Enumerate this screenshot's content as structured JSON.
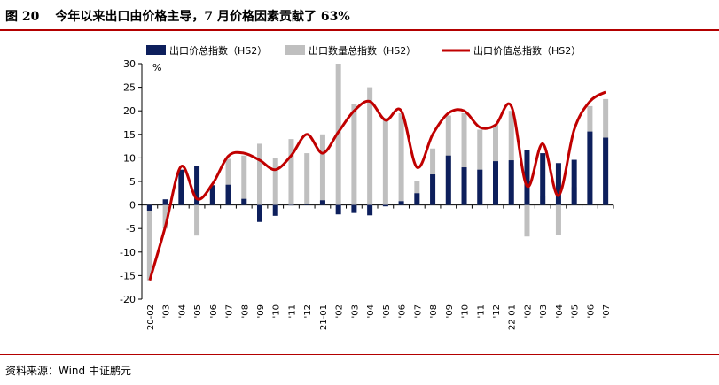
{
  "figure": {
    "number": "图 20",
    "title": "今年以来出口由价格主导，7 月价格因素贡献了 63%",
    "source": "资料来源：Wind   中证鹏元"
  },
  "chart_data": {
    "type": "bar",
    "unit_label": "%",
    "ylim": [
      -20,
      30
    ],
    "yticks": [
      -20,
      -15,
      -10,
      -5,
      0,
      5,
      10,
      15,
      20,
      25,
      30
    ],
    "legend_position": "top",
    "colors": {
      "price": "#0d1f5c",
      "volume": "#bfbfbf",
      "value": "#c00000"
    },
    "categories": [
      "20-02",
      "20-03",
      "20-04",
      "20-05",
      "20-06",
      "20-07",
      "20-08",
      "20-09",
      "20-10",
      "20-11",
      "20-12",
      "21-01",
      "21-02",
      "21-03",
      "21-04",
      "21-05",
      "21-06",
      "21-07",
      "21-08",
      "21-09",
      "21-10",
      "21-11",
      "21-12",
      "22-01",
      "22-02",
      "22-03",
      "22-04",
      "22-05",
      "22-06",
      "22-07"
    ],
    "tick_labels": [
      "20-02",
      "'03",
      "'04",
      "'05",
      "'06",
      "'07",
      "'08",
      "'09",
      "'10",
      "'11",
      "'12",
      "21-01",
      "'02",
      "'03",
      "'04",
      "'05",
      "'06",
      "'07",
      "'08",
      "'09",
      "'10",
      "'11",
      "'12",
      "22-01",
      "'02",
      "'03",
      "'04",
      "'05",
      "'06",
      "'07"
    ],
    "series": [
      {
        "name": "出口价总指数（HS2）",
        "kind": "bar",
        "color": "#0d1f5c",
        "values": [
          -1.2,
          1.2,
          7.5,
          8.3,
          4.2,
          4.3,
          1.3,
          -3.6,
          -2.3,
          0,
          0.3,
          1.0,
          -2.0,
          -1.7,
          -2.2,
          -0.3,
          0.8,
          2.5,
          6.5,
          10.5,
          8.0,
          7.5,
          9.3,
          9.5,
          11.7,
          11.0,
          8.9,
          9.6,
          15.6,
          14.3
        ]
      },
      {
        "name": "出口数量总指数（HS2）",
        "kind": "bar",
        "color": "#bfbfbf",
        "values": [
          -16.0,
          -5.0,
          0.5,
          -6.5,
          0.5,
          9.8,
          10.5,
          13.0,
          10.0,
          14.0,
          11.0,
          15.0,
          30.0,
          21.5,
          25.0,
          18.5,
          19.5,
          5.0,
          12.0,
          19.0,
          19.5,
          16.0,
          17.0,
          20.0,
          -6.7,
          2.0,
          -6.3,
          3.8,
          21.0,
          22.5
        ]
      },
      {
        "name": "出口价值总指数（HS2）",
        "kind": "line",
        "color": "#c00000",
        "values": [
          -16.0,
          -4.5,
          8.2,
          1.3,
          4.5,
          10.4,
          11.0,
          9.5,
          7.5,
          10.5,
          15.0,
          11.0,
          15.5,
          20.0,
          22.0,
          18.0,
          20.0,
          8.0,
          15.0,
          19.5,
          20.0,
          16.5,
          17.0,
          21.0,
          4.0,
          13.0,
          2.0,
          16.0,
          22.0,
          24.0
        ]
      }
    ]
  }
}
